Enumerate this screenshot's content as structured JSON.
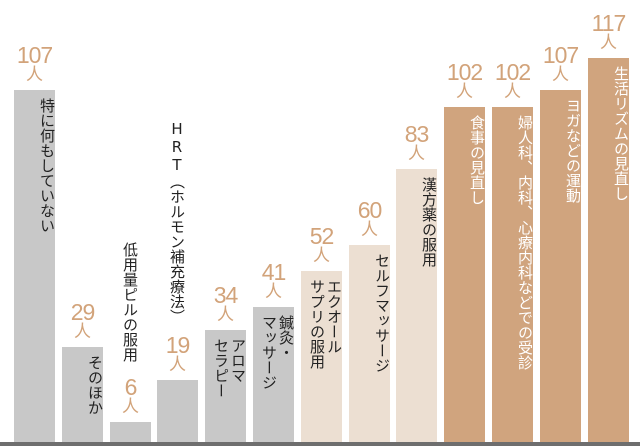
{
  "chart_data": {
    "type": "bar",
    "title": "",
    "xlabel": "",
    "ylabel": "",
    "unit": "人",
    "ylim": [
      0,
      117
    ],
    "grid": false,
    "legend": "none",
    "categories": [
      "特に何もしていない",
      "そのほか",
      "低用量ピルの服用",
      "HRT（ホルモン補充療法）",
      "アロマセラピー",
      "鍼灸・マッサージ",
      "エクオールサプリの服用",
      "セルフマッサージ",
      "漢方薬の服用",
      "食事の見直し",
      "婦人科、内科、心療内科などでの受診",
      "ヨガなどの運動",
      "生活リズムの見直し"
    ],
    "values": [
      107,
      29,
      6,
      19,
      34,
      41,
      52,
      60,
      83,
      102,
      102,
      107,
      117
    ],
    "bar_groups": [
      "gray",
      "gray",
      "gray",
      "gray",
      "gray",
      "gray",
      "light",
      "light",
      "light",
      "dark",
      "dark",
      "dark",
      "dark"
    ]
  },
  "colors": {
    "gray": "#c8c8c8",
    "light": "#ecdfd2",
    "dark": "#d0a47e",
    "value_text": "#d2a37a",
    "axis": "#6e6e6e"
  },
  "bars": [
    {
      "value_text": "107",
      "unit": "人",
      "label": "特に何もしていない"
    },
    {
      "value_text": "29",
      "unit": "人",
      "label": "そのほか"
    },
    {
      "value_text": "6",
      "unit": "人",
      "label": "低用量ピルの服用"
    },
    {
      "value_text": "19",
      "unit": "人",
      "label": "HRT（ホルモン補充療法）"
    },
    {
      "value_text": "34",
      "unit": "人",
      "label": "アロマ\nセラピー"
    },
    {
      "value_text": "41",
      "unit": "人",
      "label": "鍼灸・\nマッサージ"
    },
    {
      "value_text": "52",
      "unit": "人",
      "label": "エクオール\nサプリの服用"
    },
    {
      "value_text": "60",
      "unit": "人",
      "label": "セルフマッサージ"
    },
    {
      "value_text": "83",
      "unit": "人",
      "label": "漢方薬の服用"
    },
    {
      "value_text": "102",
      "unit": "人",
      "label": "食事の見直し"
    },
    {
      "value_text": "102",
      "unit": "人",
      "label": "婦人科、内科、心療内科などでの受診"
    },
    {
      "value_text": "107",
      "unit": "人",
      "label": "ヨガなどの運動"
    },
    {
      "value_text": "117",
      "unit": "人",
      "label": "生活リズムの見直し"
    }
  ]
}
